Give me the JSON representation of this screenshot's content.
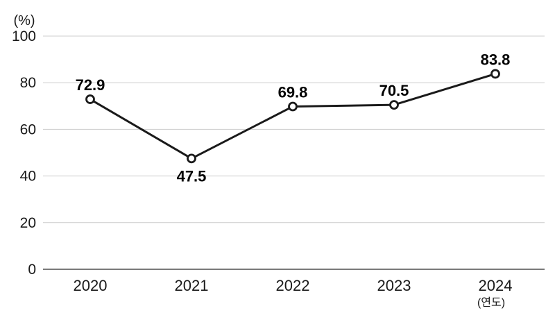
{
  "chart": {
    "unit_label": "(%)",
    "x_axis_note": "(연도)"
  },
  "chart_data": {
    "type": "line",
    "title": "",
    "categories": [
      "2020",
      "2021",
      "2022",
      "2023",
      "2024"
    ],
    "series": [
      {
        "name": "value",
        "values": [
          72.9,
          47.5,
          69.8,
          70.5,
          83.8
        ],
        "data_labels": [
          "72.9",
          "47.5",
          "69.8",
          "70.5",
          "83.8"
        ],
        "label_positions": [
          "above",
          "below",
          "above",
          "above",
          "above"
        ]
      }
    ],
    "xlabel": "(연도)",
    "ylabel": "(%)",
    "ylim": [
      0,
      100
    ],
    "yticks": [
      0,
      20,
      40,
      60,
      80,
      100
    ],
    "grid": "horizontal",
    "legend": "none",
    "marker": "open-circle",
    "colors": {
      "line": "#1a1a1a",
      "marker_fill": "#ffffff",
      "marker_stroke": "#1a1a1a",
      "gridline": "#cccccc",
      "axis_line": "#7a7a7a",
      "tick_text": "#1a1a1a",
      "data_label_text": "#000000",
      "background": "#ffffff"
    }
  }
}
